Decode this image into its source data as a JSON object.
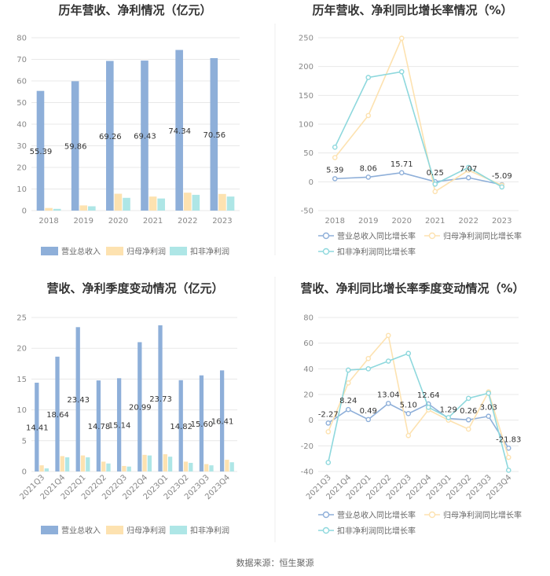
{
  "footer": "数据来源：恒生聚源",
  "colors": {
    "revenue": "#8eafd9",
    "netprofit": "#fde2b0",
    "deducted": "#aee6e6",
    "line_revenue": "#8eafd9",
    "line_netprofit": "#fde2b0",
    "line_deducted": "#8ed8dd"
  },
  "chart_data": [
    {
      "type": "bar",
      "title": "历年营收、净利情况（亿元）",
      "categories": [
        "2018",
        "2019",
        "2020",
        "2021",
        "2022",
        "2023"
      ],
      "ylim": [
        0,
        80
      ],
      "yticks": [
        0,
        10,
        20,
        30,
        40,
        50,
        60,
        70,
        80
      ],
      "grid": true,
      "legend_position": "bottom",
      "series": [
        {
          "name": "营业总收入",
          "values": [
            55.39,
            59.86,
            69.26,
            69.43,
            74.34,
            70.56
          ],
          "labels": [
            "55.39",
            "59.86",
            "69.26",
            "69.43",
            "74.34",
            "70.56"
          ]
        },
        {
          "name": "归母净利润",
          "values": [
            1.2,
            2.4,
            7.8,
            6.5,
            8.3,
            7.7
          ]
        },
        {
          "name": "扣非净利润",
          "values": [
            0.8,
            2.0,
            5.9,
            5.6,
            7.3,
            6.5
          ]
        }
      ]
    },
    {
      "type": "line",
      "title": "历年营收、净利同比增长率情况（%）",
      "categories": [
        "2018",
        "2019",
        "2020",
        "2021",
        "2022",
        "2023"
      ],
      "ylim": [
        -50,
        250
      ],
      "yticks": [
        -50,
        0,
        50,
        100,
        150,
        200,
        250
      ],
      "grid": true,
      "legend_position": "bottom",
      "series": [
        {
          "name": "营业总收入同比增长率",
          "values": [
            5.39,
            8.06,
            15.71,
            0.25,
            7.07,
            -5.09
          ],
          "labels": [
            "5.39",
            "8.06",
            "15.71",
            "0.25",
            "7.07",
            "-5.09"
          ]
        },
        {
          "name": "归母净利润同比增长率",
          "values": [
            42,
            115,
            249,
            -17,
            20,
            -6
          ]
        },
        {
          "name": "扣非净利润同比增长率",
          "values": [
            60,
            181,
            191,
            -4,
            25,
            -9
          ]
        }
      ]
    },
    {
      "type": "bar",
      "title": "营收、净利季度变动情况（亿元）",
      "categories": [
        "2021Q3",
        "2021Q4",
        "2022Q1",
        "2022Q2",
        "2022Q3",
        "2022Q4",
        "2023Q1",
        "2023Q2",
        "2023Q3",
        "2023Q4"
      ],
      "ylim": [
        0,
        25
      ],
      "yticks": [
        0,
        5,
        10,
        15,
        20,
        25
      ],
      "grid": true,
      "legend_position": "bottom",
      "series": [
        {
          "name": "营业总收入",
          "values": [
            14.41,
            18.64,
            23.43,
            14.78,
            15.14,
            20.99,
            23.73,
            14.82,
            15.6,
            16.41
          ],
          "labels": [
            "14.41",
            "18.64",
            "23.43",
            "14.78",
            "15.14",
            "20.99",
            "23.73",
            "14.82",
            "15.60",
            "16.41"
          ]
        },
        {
          "name": "归母净利润",
          "values": [
            1.0,
            2.5,
            2.6,
            1.6,
            0.9,
            2.7,
            2.8,
            1.6,
            1.2,
            1.9
          ]
        },
        {
          "name": "扣非净利润",
          "values": [
            0.5,
            2.3,
            2.3,
            1.3,
            0.8,
            2.6,
            2.4,
            1.4,
            1.0,
            1.5
          ]
        }
      ]
    },
    {
      "type": "line",
      "title": "营收、净利同比增长率季度变动情况（%）",
      "categories": [
        "2021Q3",
        "2021Q4",
        "2022Q1",
        "2022Q2",
        "2022Q3",
        "2022Q4",
        "2023Q1",
        "2023Q2",
        "2023Q3",
        "2023Q4"
      ],
      "ylim": [
        -40,
        80
      ],
      "yticks": [
        -40,
        -20,
        0,
        20,
        40,
        60,
        80
      ],
      "grid": true,
      "legend_position": "bottom",
      "series": [
        {
          "name": "营业总收入同比增长率",
          "values": [
            -2.27,
            8.24,
            0.49,
            13.04,
            5.1,
            12.64,
            1.29,
            0.26,
            3.03,
            -21.83
          ],
          "labels": [
            "-2.27",
            "8.24",
            "0.49",
            "13.04",
            "5.10",
            "12.64",
            "1.29",
            "0.26",
            "3.03",
            "-21.83"
          ]
        },
        {
          "name": "归母净利润同比增长率",
          "values": [
            -9,
            29,
            48,
            66,
            -12,
            8,
            0,
            -7,
            22,
            -29
          ]
        },
        {
          "name": "扣非净利润同比增长率",
          "values": [
            -33,
            39,
            40,
            46,
            52,
            10,
            2,
            17,
            21,
            -39
          ]
        }
      ]
    }
  ]
}
